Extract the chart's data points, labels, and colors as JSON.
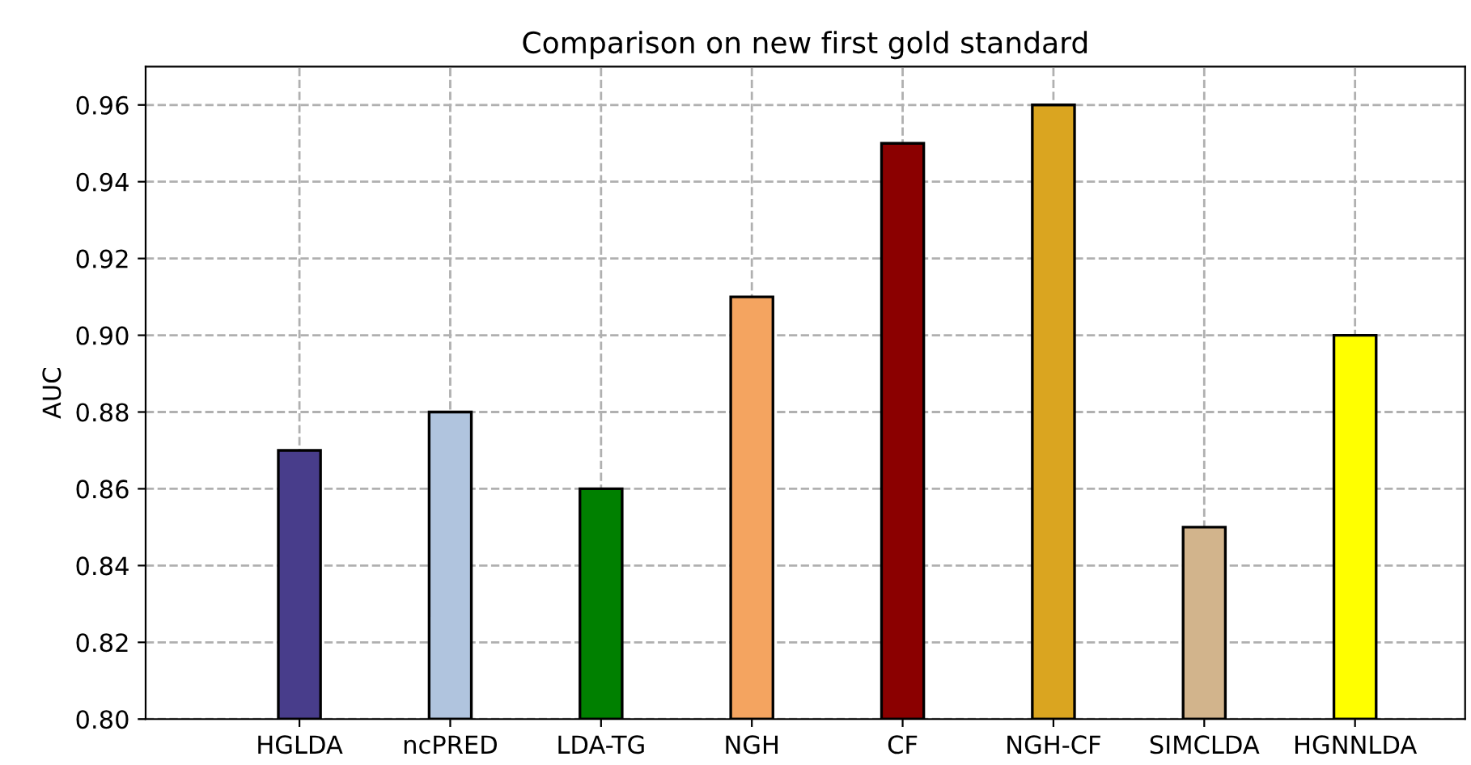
{
  "chart_data": {
    "type": "bar",
    "title": "Comparison on new first gold standard",
    "ylabel": "AUC",
    "categories": [
      "HGLDA",
      "ncPRED",
      "LDA-TG",
      "NGH",
      "CF",
      "NGH-CF",
      "SIMCLDA",
      "HGNNLDA"
    ],
    "values": [
      0.87,
      0.88,
      0.86,
      0.91,
      0.95,
      0.96,
      0.85,
      0.9
    ],
    "colors": [
      "#483d8b",
      "#b0c4de",
      "#008000",
      "#f4a460",
      "#8b0000",
      "#daa520",
      "#d2b48c",
      "#ffff00"
    ],
    "ylim": [
      0.8,
      0.97
    ],
    "yticks": [
      {
        "value": 0.8,
        "label": "0.80"
      },
      {
        "value": 0.82,
        "label": "0.82"
      },
      {
        "value": 0.84,
        "label": "0.84"
      },
      {
        "value": 0.86,
        "label": "0.86"
      },
      {
        "value": 0.88,
        "label": "0.88"
      },
      {
        "value": 0.9,
        "label": "0.90"
      },
      {
        "value": 0.92,
        "label": "0.92"
      },
      {
        "value": 0.94,
        "label": "0.94"
      },
      {
        "value": 0.96,
        "label": "0.96"
      }
    ],
    "grid": true
  }
}
